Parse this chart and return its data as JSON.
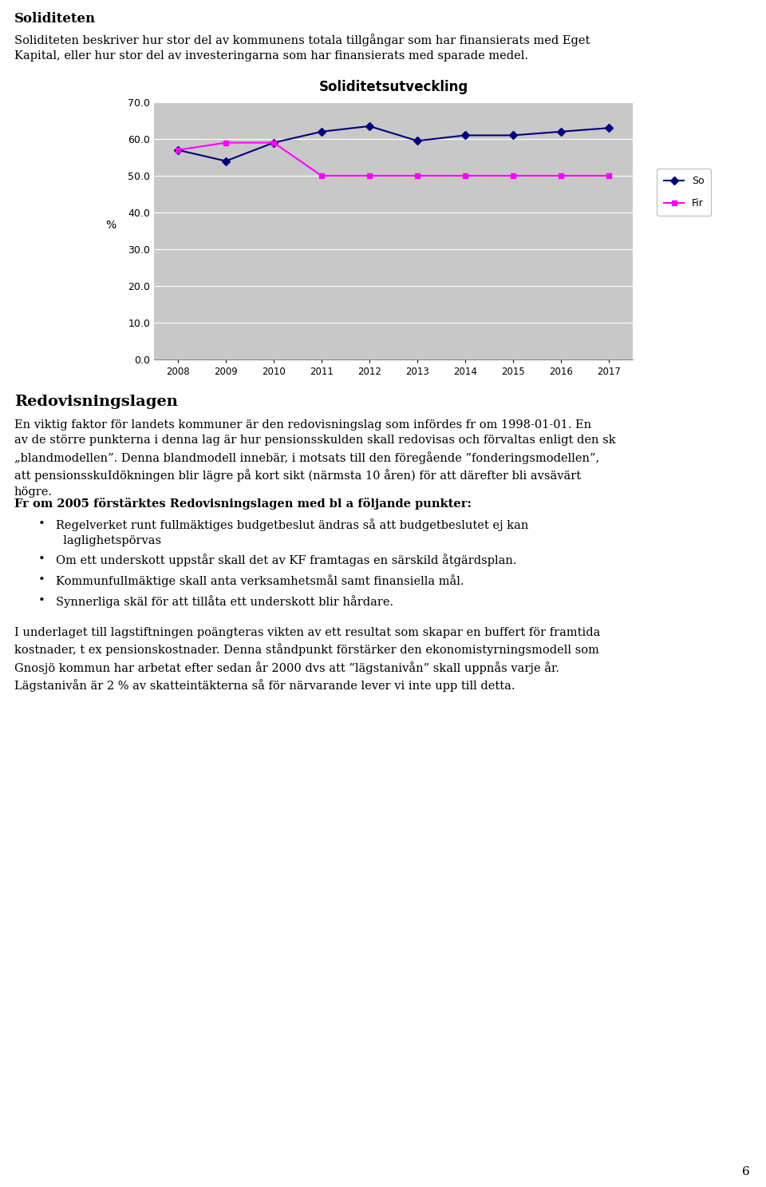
{
  "title": "Soliditetsutveckling",
  "years": [
    2008,
    2009,
    2010,
    2011,
    2012,
    2013,
    2014,
    2015,
    2016,
    2017
  ],
  "soliditet": [
    57.0,
    54.0,
    59.0,
    62.0,
    63.5,
    59.5,
    61.0,
    61.0,
    62.0,
    63.0
  ],
  "finansiell": [
    57.0,
    59.0,
    59.0,
    50.0,
    50.0,
    50.0,
    50.0,
    50.0,
    50.0,
    50.0
  ],
  "soliditet_color": "#000080",
  "finansiell_color": "#FF00FF",
  "legend_labels": [
    "So",
    "Fir"
  ],
  "ylabel": "%",
  "ylim": [
    0,
    70
  ],
  "yticks": [
    0.0,
    10.0,
    20.0,
    30.0,
    40.0,
    50.0,
    60.0,
    70.0
  ],
  "chart_bg": "#C8C8C8",
  "yellow_color": "#FFFF00",
  "page_bg": "#FFFFFF",
  "heading1": "Soliditeten",
  "para1_line1": "Soliditeten beskriver hur stor del av kommunens totala tillgångar som har finansierats med Eget",
  "para1_line2": "Kapital, eller hur stor del av investeringarna som har finansierats med sparade medel.",
  "heading2": "Redovisningslagen",
  "para2": "En viktig faktor för landets kommuner är den redovisningslag som infördes fr om 1998-01-01. En\nav de större punkterna i denna lag är hur pensionsskulden skall redovisas och förvaltas enligt den sk\n„blandmodellen”. Denna blandmodell innebär, i motsats till den föregående ”fonderingsmodellen”,\natt pensionsskuIdökningen blir lägre på kort sikt (närmsta 10 åren) för att därefter bli avsävärt\nhögre.",
  "heading3": "Fr om 2005 förstärktes Redovisningslagen med bl a följande punkter:",
  "bullet1_l1": "Regelverket runt fullmäktiges budgetbeslut ändras så att budgetbeslutet ej kan",
  "bullet1_l2": "laglighetspörvas",
  "bullet2": "Om ett underskott uppstår skall det av KF framtagas en särskild åtgärdsplan.",
  "bullet3": "Kommunfullmäktige skall anta verksamhetsmål samt finansiella mål.",
  "bullet4": "Synnerliga skäl för att tillåta ett underskott blir hårdare.",
  "para3": "I underlaget till lagstiftningen poängteras vikten av ett resultat som skapar en buffert för framtida\nkostnader, t ex pensionskostnader. Denna ståndpunkt förstärker den ekonomistyrningsmodell som\nGnosjö kommun har arbetat efter sedan år 2000 dvs att ”lägstanivån” skall uppnås varje år.\nLägstanivån är 2 % av skatteintäkterna så för närvarande lever vi inte upp till detta.",
  "page_number": "6",
  "font_size_body": 10.5,
  "font_size_h1": 12,
  "font_size_h2": 14
}
